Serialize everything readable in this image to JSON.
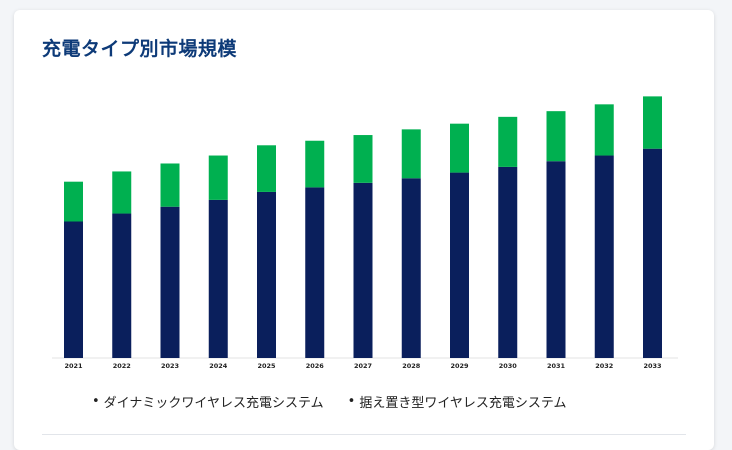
{
  "card": {
    "title": "充電タイプ別市場規模"
  },
  "legend": [
    {
      "bullet": "•",
      "label": "ダイナミックワイヤレス充電システム"
    },
    {
      "bullet": "•",
      "label": "据え置き型ワイヤレス充電システム"
    }
  ],
  "chart_data": {
    "type": "bar",
    "stacked": true,
    "title": "充電タイプ別市場規模",
    "categories": [
      "2021",
      "2022",
      "2023",
      "2024",
      "2025",
      "2026",
      "2027",
      "2028",
      "2029",
      "2030",
      "2031",
      "2032",
      "2033"
    ],
    "series": [
      {
        "name": "ダイナミックワイヤレス充電システム",
        "color": "#0a1f5c",
        "values": [
          120,
          127,
          133,
          139,
          146,
          150,
          154,
          158,
          163,
          168,
          173,
          178,
          184
        ]
      },
      {
        "name": "据え置き型ワイヤレス充電システム",
        "color": "#00b050",
        "values": [
          35,
          37,
          38,
          39,
          41,
          41,
          42,
          43,
          43,
          44,
          44,
          45,
          46
        ]
      }
    ],
    "ylim": [
      0,
      240
    ],
    "grid": false,
    "legend_position": "bottom"
  }
}
